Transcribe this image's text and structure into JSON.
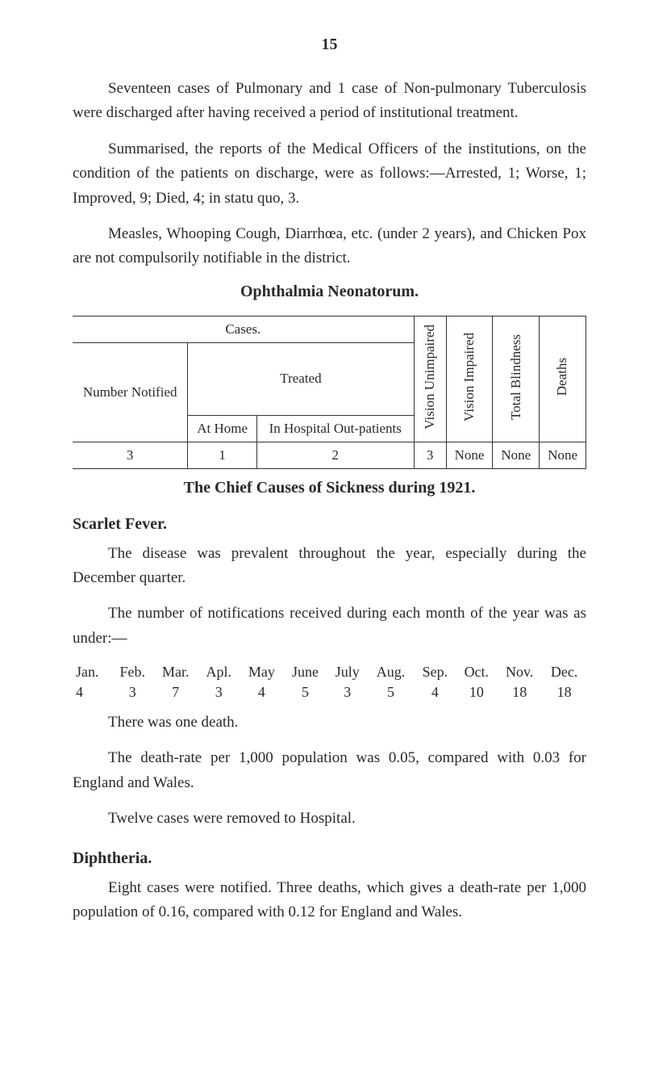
{
  "page_number": "15",
  "para1": "Seventeen cases of Pulmonary and 1 case of Non-pulmonary Tuberculosis were discharged after having received a period of institutional treatment.",
  "para2": "Summarised, the reports of the Medical Officers of the institutions, on the condition of the patients on discharge, were as follows:—Arrested, 1; Worse, 1; Improved, 9; Died, 4; in statu quo, 3.",
  "para3": "Measles, Whooping Cough, Diarrhœa, etc. (under 2 years), and Chicken Pox are not compulsorily notifiable in the district.",
  "oph_heading": "Ophthalmia Neonatorum.",
  "oph": {
    "cases": "Cases.",
    "number_notified": "Number Notified",
    "treated": "Treated",
    "at_home": "At Home",
    "in_hospital": "In Hospital Out-patients",
    "vision_unimpaired": "Vision Unimpaired",
    "vision_impaired": "Vision Impaired",
    "total_blindness": "Total Blindness",
    "deaths": "Deaths",
    "row": {
      "number_notified": "3",
      "at_home": "1",
      "in_hospital": "2",
      "vision_unimpaired": "3",
      "vision_impaired": "None",
      "total_blindness": "None",
      "deaths": "None"
    }
  },
  "chief_heading": "The Chief Causes of Sickness during 1921.",
  "scarlet_heading": "Scarlet Fever.",
  "scarlet_p1": "The disease was prevalent throughout the year, especially during the December quarter.",
  "scarlet_p2": "The number of notifications received during each month of the year was as under:—",
  "months": {
    "labels": [
      "Jan.",
      "Feb.",
      "Mar.",
      "Apl.",
      "May",
      "June",
      "July",
      "Aug.",
      "Sep.",
      "Oct.",
      "Nov.",
      "Dec."
    ],
    "values": [
      "4",
      "3",
      "7",
      "3",
      "4",
      "5",
      "3",
      "5",
      "4",
      "10",
      "18",
      "18"
    ]
  },
  "scarlet_p3": "There was one death.",
  "scarlet_p4": "The death-rate per 1,000 population was 0.05, compared with 0.03 for England and Wales.",
  "scarlet_p5": "Twelve cases were removed to Hospital.",
  "diph_heading": "Diphtheria.",
  "diph_p1": "Eight cases were notified.   Three deaths, which gives a death-rate per 1,000 population of 0.16, compared with 0.12 for England and Wales."
}
